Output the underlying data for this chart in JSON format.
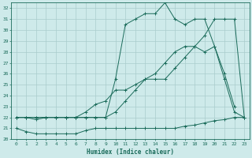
{
  "xlabel": "Humidex (Indice chaleur)",
  "bg_color": "#ceeaea",
  "grid_color": "#aacccc",
  "line_color": "#1a6b5a",
  "xlim": [
    -0.5,
    23.5
  ],
  "ylim": [
    20,
    32.5
  ],
  "xticks": [
    0,
    1,
    2,
    3,
    4,
    5,
    6,
    7,
    8,
    9,
    10,
    11,
    12,
    13,
    14,
    15,
    16,
    17,
    18,
    19,
    20,
    21,
    22,
    23
  ],
  "yticks": [
    20,
    21,
    22,
    23,
    24,
    25,
    26,
    27,
    28,
    29,
    30,
    31,
    32
  ],
  "line1_x": [
    0,
    1,
    2,
    3,
    4,
    5,
    6,
    7,
    8,
    9,
    10,
    11,
    12,
    13,
    14,
    15,
    16,
    17,
    18,
    19,
    20,
    21,
    22,
    23
  ],
  "line1_y": [
    21.0,
    20.7,
    20.5,
    20.5,
    20.5,
    20.5,
    20.5,
    20.8,
    21.0,
    21.0,
    21.0,
    21.0,
    21.0,
    21.0,
    21.0,
    21.0,
    21.0,
    21.2,
    21.3,
    21.5,
    21.7,
    21.8,
    22.0,
    22.0
  ],
  "line2_x": [
    0,
    1,
    2,
    3,
    4,
    5,
    6,
    7,
    8,
    9,
    10,
    11,
    12,
    13,
    14,
    15,
    16,
    17,
    18,
    19,
    20,
    21,
    22,
    23
  ],
  "line2_y": [
    22,
    22,
    21.8,
    22,
    22,
    22,
    22,
    22.5,
    23.2,
    23.5,
    24.5,
    24.5,
    25.0,
    25.5,
    25.5,
    25.5,
    26.5,
    27.5,
    28.5,
    29.5,
    31.0,
    31.0,
    31.0,
    22.0
  ],
  "line3_x": [
    0,
    1,
    2,
    3,
    4,
    5,
    6,
    7,
    8,
    9,
    10,
    11,
    12,
    13,
    14,
    15,
    16,
    17,
    18,
    19,
    20,
    21,
    22,
    23
  ],
  "line3_y": [
    22,
    22,
    22,
    22,
    22,
    22,
    22,
    22,
    22,
    22,
    22.5,
    23.5,
    24.5,
    25.5,
    26.0,
    27.0,
    28.0,
    28.5,
    28.5,
    28.0,
    28.5,
    25.5,
    22.5,
    22.0
  ],
  "line4_x": [
    0,
    1,
    2,
    3,
    4,
    5,
    6,
    7,
    8,
    9,
    10,
    11,
    12,
    13,
    14,
    15,
    16,
    17,
    18,
    19,
    20,
    21,
    22
  ],
  "line4_y": [
    22,
    22,
    22,
    22,
    22,
    22,
    22,
    22,
    22,
    22,
    25.5,
    30.5,
    31.0,
    31.5,
    31.5,
    32.5,
    31.0,
    30.5,
    31.0,
    31.0,
    28.5,
    26.0,
    23.0
  ]
}
